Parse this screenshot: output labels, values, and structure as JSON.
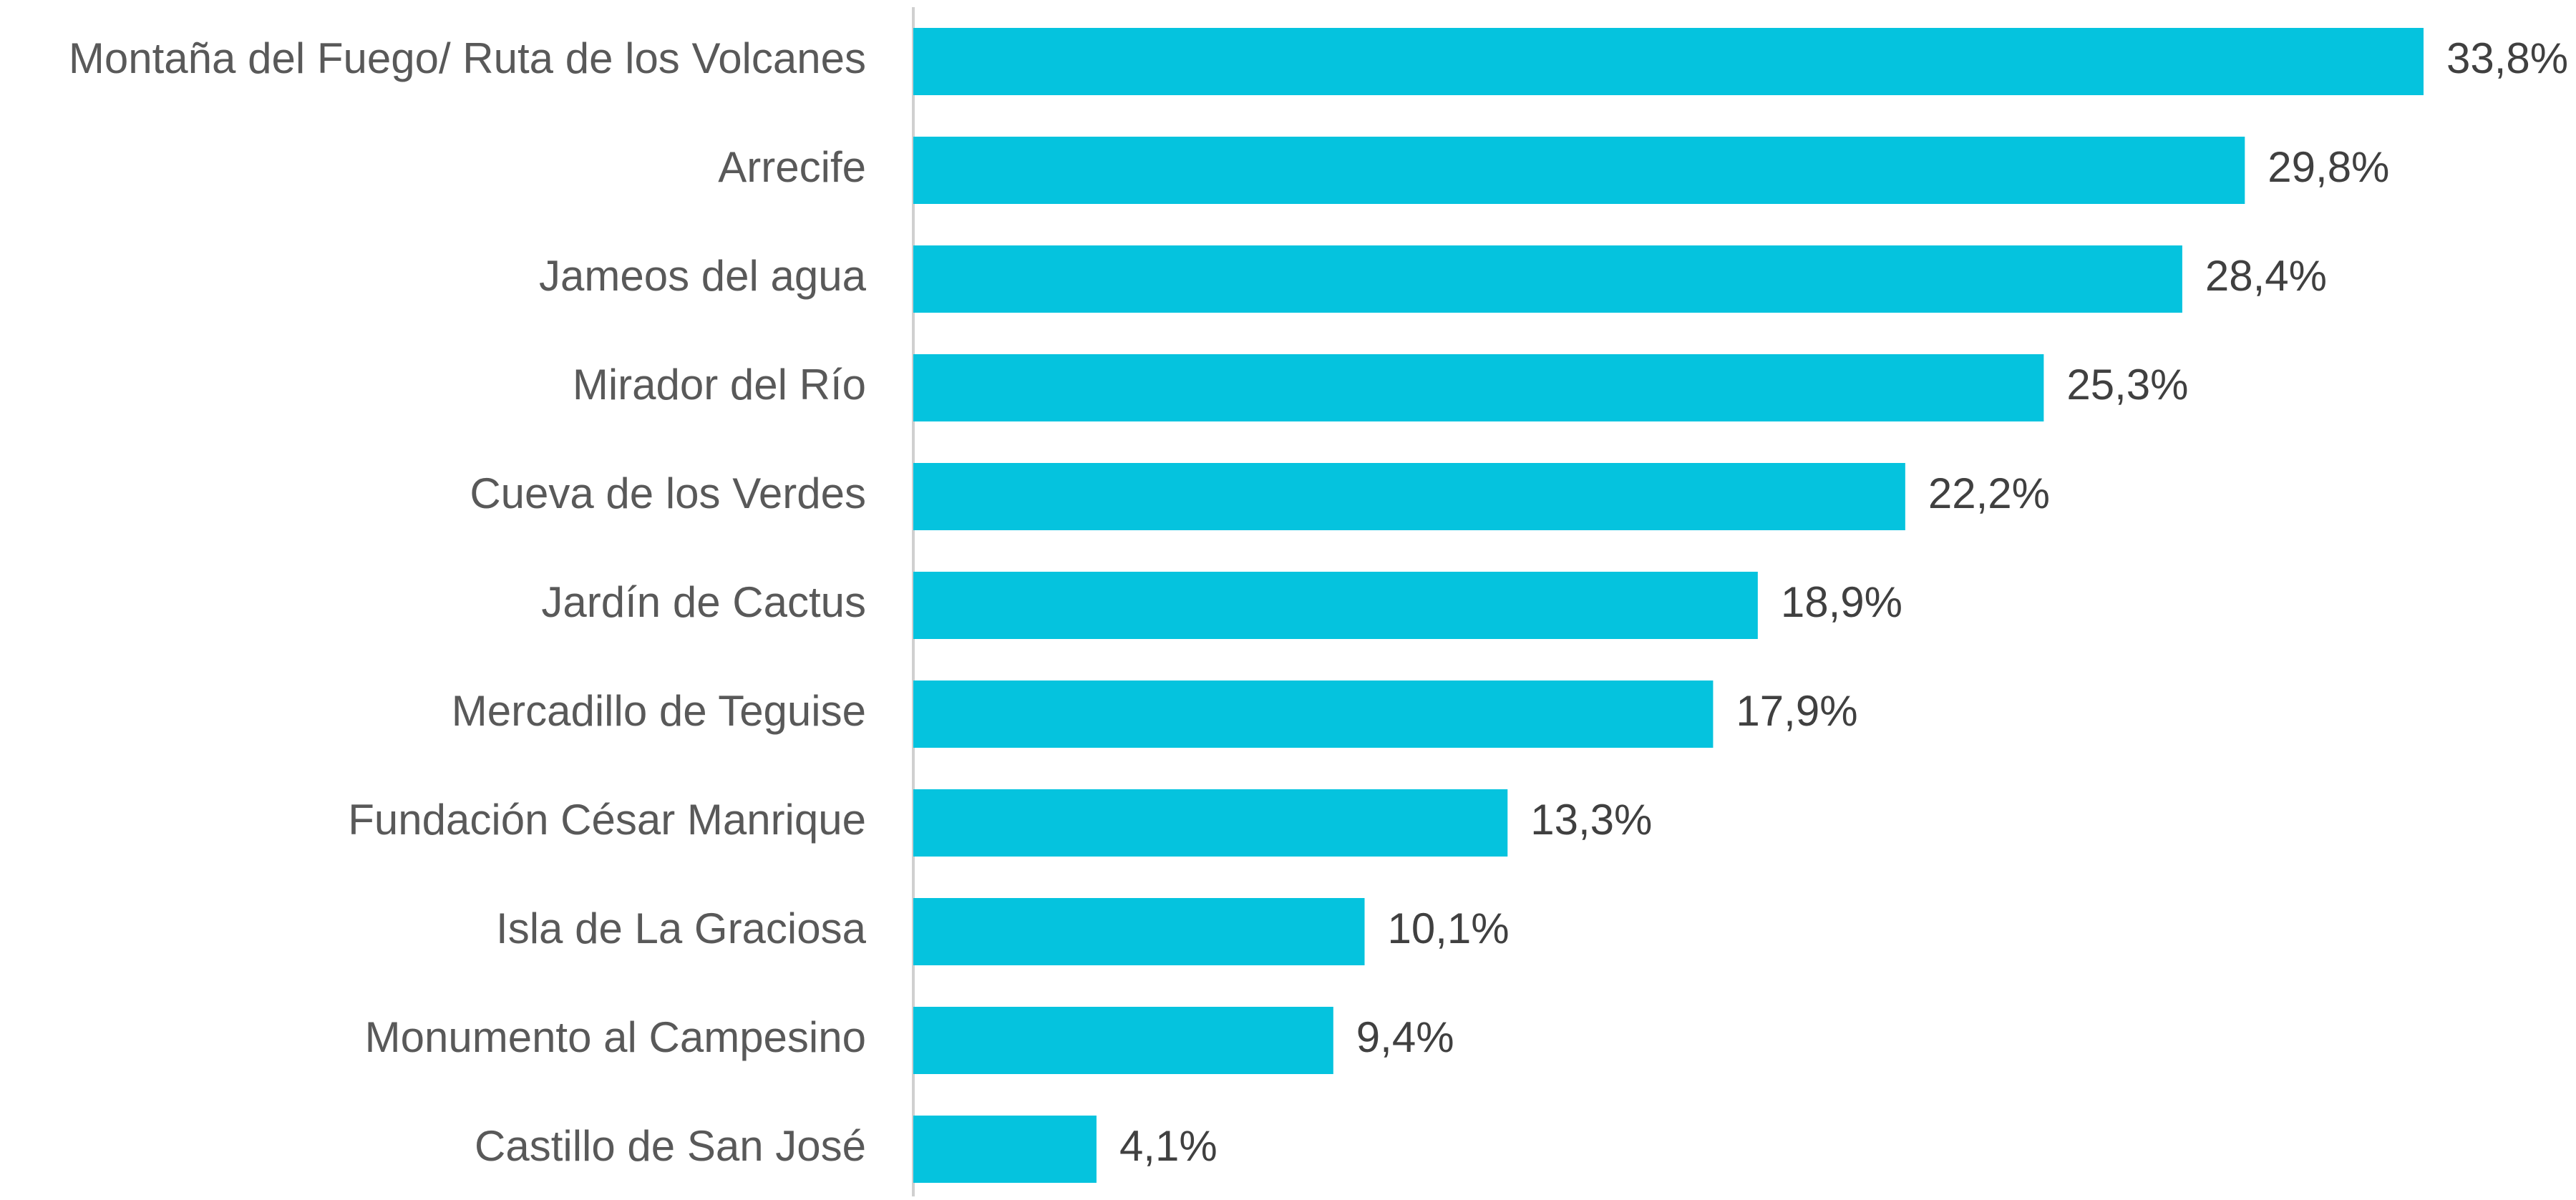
{
  "chart_data": {
    "type": "barh",
    "categories": [
      "Montaña del Fuego/ Ruta de los Volcanes",
      "Arrecife",
      "Jameos del agua",
      "Mirador del Río",
      "Cueva de los Verdes",
      "Jardín de Cactus",
      "Mercadillo de Teguise",
      "Fundación César Manrique",
      "Isla de La Graciosa",
      "Monumento al Campesino",
      "Castillo de San José"
    ],
    "values": [
      33.8,
      29.8,
      28.4,
      25.3,
      22.2,
      18.9,
      17.9,
      13.3,
      10.1,
      9.4,
      4.1
    ],
    "value_labels": [
      "33,8%",
      "29,8%",
      "28,4%",
      "25,3%",
      "22,2%",
      "18,9%",
      "17,9%",
      "13,3%",
      "10,1%",
      "9,4%",
      "4,1%"
    ],
    "color": "#05c3de"
  }
}
